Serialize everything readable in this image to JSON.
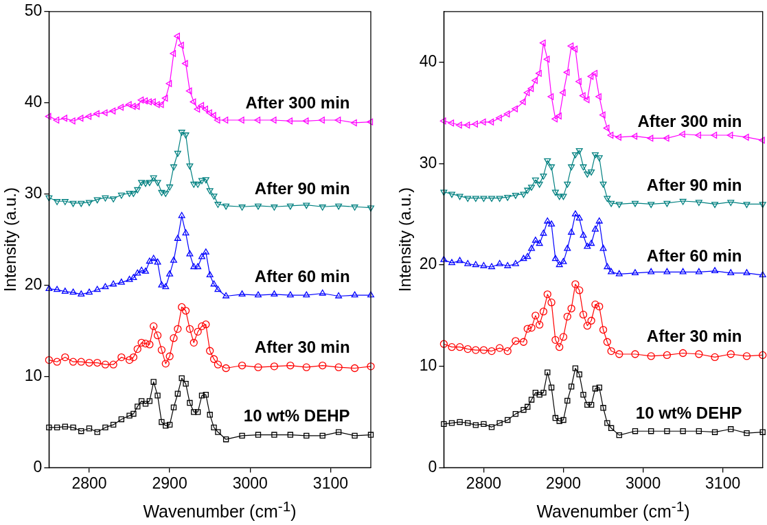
{
  "chart_data": [
    {
      "type": "line",
      "xlabel": "Wavenumber (cm$^{-1}$)",
      "ylabel": "Intensity (a.u.)",
      "xlim": [
        2750,
        3150
      ],
      "xticks": [
        2800,
        2900,
        3000,
        3100
      ],
      "ylim": [
        0,
        50
      ],
      "yticks": [
        0,
        10,
        20,
        30,
        40,
        50
      ],
      "x": [
        2750,
        2760,
        2770,
        2780,
        2790,
        2800,
        2810,
        2820,
        2830,
        2840,
        2850,
        2855,
        2860,
        2865,
        2870,
        2875,
        2880,
        2885,
        2890,
        2895,
        2900,
        2905,
        2910,
        2915,
        2920,
        2925,
        2930,
        2935,
        2940,
        2945,
        2950,
        2955,
        2960,
        2970,
        2990,
        3010,
        3030,
        3050,
        3070,
        3090,
        3110,
        3130,
        3150
      ],
      "series": [
        {
          "name": "10 wt% DEHP",
          "color": "#000000",
          "marker": "square",
          "values": [
            4.4,
            4.4,
            4.5,
            4.4,
            4.0,
            4.3,
            3.9,
            4.4,
            4.7,
            5.3,
            5.7,
            5.9,
            6.7,
            7.3,
            7.0,
            7.3,
            9.4,
            7.9,
            5.0,
            4.6,
            4.7,
            6.6,
            8.1,
            9.8,
            9.2,
            7.1,
            6.1,
            6.1,
            7.9,
            8.0,
            5.8,
            4.4,
            3.9,
            3.1,
            3.5,
            3.6,
            3.6,
            3.6,
            3.5,
            3.5,
            3.9,
            3.5,
            3.6
          ]
        },
        {
          "name": "After 30 min",
          "color": "#ff0000",
          "marker": "circle",
          "values": [
            11.8,
            11.6,
            12.1,
            11.6,
            11.6,
            11.5,
            11.5,
            11.3,
            11.3,
            12.1,
            11.8,
            12.1,
            13.0,
            13.7,
            13.6,
            13.5,
            15.5,
            14.5,
            12.9,
            11.4,
            12.2,
            14.2,
            15.2,
            17.6,
            17.2,
            15.2,
            13.7,
            14.9,
            15.5,
            15.7,
            12.8,
            11.9,
            11.3,
            10.9,
            11.2,
            11.0,
            11.1,
            11.2,
            11.0,
            11.2,
            11.0,
            10.9,
            11.1
          ]
        },
        {
          "name": "After 60 min",
          "color": "#0000ff",
          "marker": "triangle",
          "values": [
            19.6,
            19.5,
            19.3,
            19.2,
            19.0,
            19.2,
            19.5,
            19.8,
            20.1,
            20.3,
            20.6,
            20.8,
            21.3,
            21.6,
            21.5,
            22.6,
            22.9,
            22.5,
            20.0,
            19.8,
            21.2,
            22.7,
            25.1,
            27.6,
            25.7,
            23.4,
            22.0,
            22.0,
            23.1,
            23.6,
            21.1,
            20.1,
            19.5,
            18.8,
            19.0,
            18.9,
            19.0,
            18.9,
            18.9,
            19.1,
            18.8,
            18.9,
            18.9
          ]
        },
        {
          "name": "After 90 min",
          "color": "#008080",
          "marker": "triangle",
          "values": [
            29.6,
            29.2,
            29.2,
            29.0,
            29.0,
            29.1,
            29.4,
            29.6,
            29.5,
            29.9,
            30.1,
            30.1,
            30.5,
            31.3,
            31.2,
            31.3,
            31.8,
            31.3,
            30.2,
            30.1,
            30.8,
            33.0,
            34.5,
            36.8,
            36.5,
            33.1,
            31.1,
            31.1,
            31.5,
            31.6,
            30.4,
            29.8,
            28.9,
            28.7,
            28.6,
            28.7,
            28.6,
            28.7,
            28.8,
            28.6,
            28.7,
            28.6,
            28.5
          ]
        },
        {
          "name": "After 300 min",
          "color": "#ff00ff",
          "marker": "triangle",
          "values": [
            38.5,
            38.1,
            38.3,
            38.0,
            38.3,
            38.5,
            38.8,
            38.9,
            39.1,
            39.5,
            39.8,
            39.6,
            39.6,
            40.3,
            40.2,
            40.1,
            40.1,
            39.8,
            39.8,
            40.5,
            42.1,
            45.4,
            47.3,
            46.3,
            44.3,
            41.3,
            40.1,
            39.3,
            39.7,
            39.3,
            38.9,
            38.6,
            38.1,
            38.1,
            38.1,
            38.1,
            38.1,
            38.0,
            38.0,
            38.1,
            38.1,
            37.8,
            37.9
          ]
        }
      ]
    },
    {
      "type": "line",
      "xlabel": "Wavenumber (cm$^{-1}$)",
      "ylabel": "Intensity (a.u.)",
      "xlim": [
        2750,
        3150
      ],
      "xticks": [
        2800,
        2900,
        3000,
        3100
      ],
      "ylim": [
        0,
        45
      ],
      "yticks": [
        0,
        10,
        20,
        30,
        40
      ],
      "x": [
        2750,
        2760,
        2770,
        2780,
        2790,
        2800,
        2810,
        2820,
        2830,
        2840,
        2850,
        2855,
        2860,
        2865,
        2870,
        2875,
        2880,
        2885,
        2890,
        2895,
        2900,
        2905,
        2910,
        2915,
        2920,
        2925,
        2930,
        2935,
        2940,
        2945,
        2950,
        2955,
        2960,
        2970,
        2990,
        3010,
        3030,
        3050,
        3070,
        3090,
        3110,
        3130,
        3150
      ],
      "series": [
        {
          "name": "10 wt% DEHP",
          "color": "#000000",
          "marker": "square",
          "values": [
            4.3,
            4.4,
            4.5,
            4.4,
            4.2,
            4.3,
            4.0,
            4.4,
            4.7,
            5.3,
            5.7,
            6.0,
            6.7,
            7.4,
            7.2,
            7.4,
            9.4,
            7.9,
            4.9,
            4.6,
            4.7,
            6.6,
            8.0,
            9.8,
            9.2,
            7.2,
            6.2,
            6.2,
            7.8,
            7.9,
            5.9,
            4.4,
            3.9,
            3.2,
            3.6,
            3.6,
            3.6,
            3.6,
            3.6,
            3.5,
            3.8,
            3.4,
            3.5
          ]
        },
        {
          "name": "After 30 min",
          "color": "#ff0000",
          "marker": "circle",
          "values": [
            12.2,
            11.9,
            11.9,
            11.7,
            11.6,
            11.6,
            11.5,
            11.8,
            11.5,
            12.5,
            12.4,
            13.7,
            13.8,
            15.0,
            14.1,
            15.4,
            17.1,
            16.3,
            12.6,
            11.9,
            12.9,
            14.9,
            15.7,
            18.1,
            17.5,
            15.1,
            14.0,
            14.5,
            16.1,
            15.9,
            13.6,
            12.4,
            11.5,
            11.2,
            11.2,
            11.0,
            11.1,
            11.3,
            11.2,
            10.9,
            11.2,
            11.0,
            11.1
          ]
        },
        {
          "name": "After 60 min",
          "color": "#0000ff",
          "marker": "triangle",
          "values": [
            20.5,
            20.2,
            20.4,
            20.1,
            20.0,
            19.9,
            19.8,
            20.1,
            19.9,
            20.1,
            20.6,
            20.8,
            21.6,
            22.4,
            22.1,
            23.1,
            24.3,
            24.0,
            20.6,
            20.0,
            20.3,
            21.6,
            23.2,
            25.0,
            24.6,
            22.9,
            21.8,
            22.1,
            23.5,
            24.3,
            21.6,
            19.8,
            19.3,
            19.1,
            19.2,
            19.3,
            19.3,
            19.3,
            19.3,
            19.4,
            19.2,
            19.2,
            19.0
          ]
        },
        {
          "name": "After 90 min",
          "color": "#008080",
          "marker": "triangle",
          "values": [
            27.2,
            27.0,
            26.8,
            26.6,
            26.6,
            26.6,
            26.6,
            26.6,
            26.7,
            26.9,
            27.0,
            27.4,
            27.7,
            28.4,
            28.0,
            28.8,
            30.3,
            29.7,
            27.2,
            26.8,
            26.8,
            28.0,
            29.7,
            30.9,
            31.3,
            29.7,
            29.0,
            29.2,
            30.9,
            30.6,
            28.0,
            26.6,
            26.1,
            26.0,
            26.1,
            26.0,
            26.1,
            26.3,
            26.2,
            26.0,
            26.2,
            26.0,
            26.0
          ]
        },
        {
          "name": "After 300 min",
          "color": "#ff00ff",
          "marker": "triangle",
          "values": [
            34.2,
            34.0,
            33.8,
            33.8,
            33.9,
            34.1,
            34.1,
            34.5,
            34.9,
            35.4,
            36.1,
            37.0,
            37.4,
            38.2,
            38.9,
            41.9,
            40.3,
            36.6,
            34.4,
            34.7,
            37.0,
            39.0,
            41.6,
            41.3,
            38.1,
            36.7,
            36.3,
            38.6,
            38.9,
            36.6,
            34.8,
            33.5,
            32.8,
            32.6,
            32.7,
            32.5,
            32.5,
            32.9,
            32.8,
            32.8,
            32.8,
            32.6,
            32.3
          ]
        }
      ]
    }
  ]
}
